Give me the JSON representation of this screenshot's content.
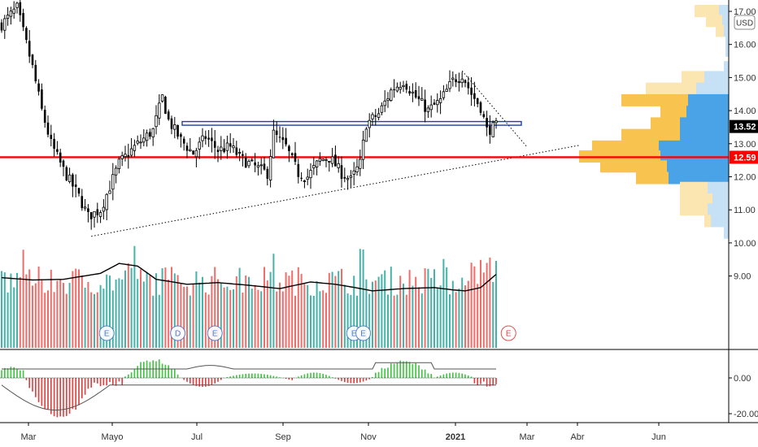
{
  "chart_data": {
    "type": "candlestick",
    "currency": "USD",
    "price_axis": {
      "ticks": [
        "17.00",
        "16.00",
        "15.00",
        "14.00",
        "13.00",
        "12.00",
        "11.00",
        "10.00",
        "9.00"
      ],
      "ylim": [
        8.2,
        17.2
      ]
    },
    "oscillator_axis": {
      "ticks": [
        "0.00",
        "-20.00"
      ],
      "ylim": [
        -25,
        15
      ]
    },
    "time_axis": {
      "labels": [
        "Mar",
        "Mayo",
        "Jul",
        "Sep",
        "Nov",
        "2021",
        "Mar",
        "Abr",
        "Jun"
      ]
    },
    "last_price": {
      "label": "13.52",
      "value": 13.52,
      "color": "#000000"
    },
    "support_level": {
      "label": "12.59",
      "value": 12.59,
      "color": "#ff0000"
    },
    "resistance_zone": {
      "value": 13.62,
      "color": "#1e3fa8"
    },
    "candles_keyframes": [
      [
        0,
        16.6
      ],
      [
        5,
        17.1
      ],
      [
        10,
        15.3
      ],
      [
        13,
        14.0
      ],
      [
        16,
        13.0
      ],
      [
        20,
        12.2
      ],
      [
        25,
        11.4
      ],
      [
        28,
        10.8
      ],
      [
        32,
        11.0
      ],
      [
        38,
        12.4
      ],
      [
        43,
        12.9
      ],
      [
        49,
        13.4
      ],
      [
        52,
        14.4
      ],
      [
        54,
        13.7
      ],
      [
        58,
        13.1
      ],
      [
        62,
        12.7
      ],
      [
        66,
        13.2
      ],
      [
        70,
        12.8
      ],
      [
        74,
        12.9
      ],
      [
        78,
        12.5
      ],
      [
        82,
        12.3
      ],
      [
        86,
        12.1
      ],
      [
        88,
        13.3
      ],
      [
        92,
        12.9
      ],
      [
        96,
        12.1
      ],
      [
        99,
        12.0
      ],
      [
        103,
        12.5
      ],
      [
        106,
        12.6
      ],
      [
        110,
        12.1
      ],
      [
        113,
        11.9
      ],
      [
        116,
        12.4
      ],
      [
        118,
        13.6
      ],
      [
        122,
        13.9
      ],
      [
        126,
        14.6
      ],
      [
        130,
        14.9
      ],
      [
        134,
        14.4
      ],
      [
        138,
        14.0
      ],
      [
        142,
        14.3
      ],
      [
        146,
        14.9
      ],
      [
        149,
        15.1
      ],
      [
        152,
        14.5
      ],
      [
        155,
        14.1
      ],
      [
        157,
        13.4
      ],
      [
        160,
        13.52
      ]
    ],
    "volume_ma_keyframes": [
      [
        0,
        8.95
      ],
      [
        10,
        8.88
      ],
      [
        20,
        8.9
      ],
      [
        32,
        9.08
      ],
      [
        38,
        9.38
      ],
      [
        44,
        9.3
      ],
      [
        50,
        8.9
      ],
      [
        60,
        8.75
      ],
      [
        70,
        8.8
      ],
      [
        80,
        8.72
      ],
      [
        90,
        8.62
      ],
      [
        100,
        8.82
      ],
      [
        108,
        8.75
      ],
      [
        115,
        8.64
      ],
      [
        120,
        8.55
      ],
      [
        130,
        8.62
      ],
      [
        140,
        8.65
      ],
      [
        146,
        8.58
      ],
      [
        150,
        8.55
      ],
      [
        155,
        8.65
      ],
      [
        160,
        9.05
      ]
    ],
    "earnings_markers": [
      {
        "label": "E",
        "index": 34
      },
      {
        "label": "D",
        "index": 57
      },
      {
        "label": "E",
        "index": 69
      },
      {
        "label": "E",
        "index": 114
      },
      {
        "label": "E",
        "index": 117
      },
      {
        "label": "E",
        "index": 164
      }
    ],
    "volume_profile": [
      {
        "price": 17.0,
        "up": 30,
        "down": 12,
        "faded": true
      },
      {
        "price": 16.7,
        "up": 20,
        "down": 8,
        "faded": true
      },
      {
        "price": 16.4,
        "up": 10,
        "down": 6,
        "faded": true
      },
      {
        "price": 16.1,
        "up": 0,
        "down": 4,
        "faded": true
      },
      {
        "price": 15.8,
        "up": 0,
        "down": 4,
        "faded": true
      },
      {
        "price": 15.3,
        "up": 0,
        "down": 6,
        "faded": true
      },
      {
        "price": 15.0,
        "up": 28,
        "down": 30,
        "faded": true
      },
      {
        "price": 14.65,
        "up": 62,
        "down": 40,
        "faded": true
      },
      {
        "price": 14.3,
        "up": 82,
        "down": 50,
        "faded": false
      },
      {
        "price": 13.95,
        "up": 32,
        "down": 52,
        "faded": false
      },
      {
        "price": 13.6,
        "up": 36,
        "down": 60,
        "faded": false
      },
      {
        "price": 13.25,
        "up": 72,
        "down": 60,
        "faded": false
      },
      {
        "price": 12.9,
        "up": 82,
        "down": 86,
        "faded": false
      },
      {
        "price": 12.6,
        "up": 100,
        "down": 84,
        "faded": false
      },
      {
        "price": 12.3,
        "up": 82,
        "down": 76,
        "faded": false
      },
      {
        "price": 11.95,
        "up": 40,
        "down": 74,
        "faded": false
      },
      {
        "price": 11.65,
        "up": 34,
        "down": 26,
        "faded": true
      },
      {
        "price": 11.3,
        "up": 40,
        "down": 20,
        "faded": true
      },
      {
        "price": 11.0,
        "up": 34,
        "down": 26,
        "faded": true
      },
      {
        "price": 10.65,
        "up": 8,
        "down": 22,
        "faded": true
      },
      {
        "price": 10.3,
        "up": 0,
        "down": 6,
        "faded": true
      }
    ],
    "colors": {
      "candle": "#000000",
      "volume_up": "#26a69a",
      "volume_down": "#ef5350",
      "volume_ma": "#000000",
      "osc_pos": "#3cc43c",
      "osc_neg": "#e03c3c",
      "profile_up": "#f8c34f",
      "profile_down": "#4aa3e6",
      "profile_up_faded": "#fbe5b1",
      "profile_down_faded": "#c6e1f5",
      "grid_border": "#000000"
    }
  }
}
